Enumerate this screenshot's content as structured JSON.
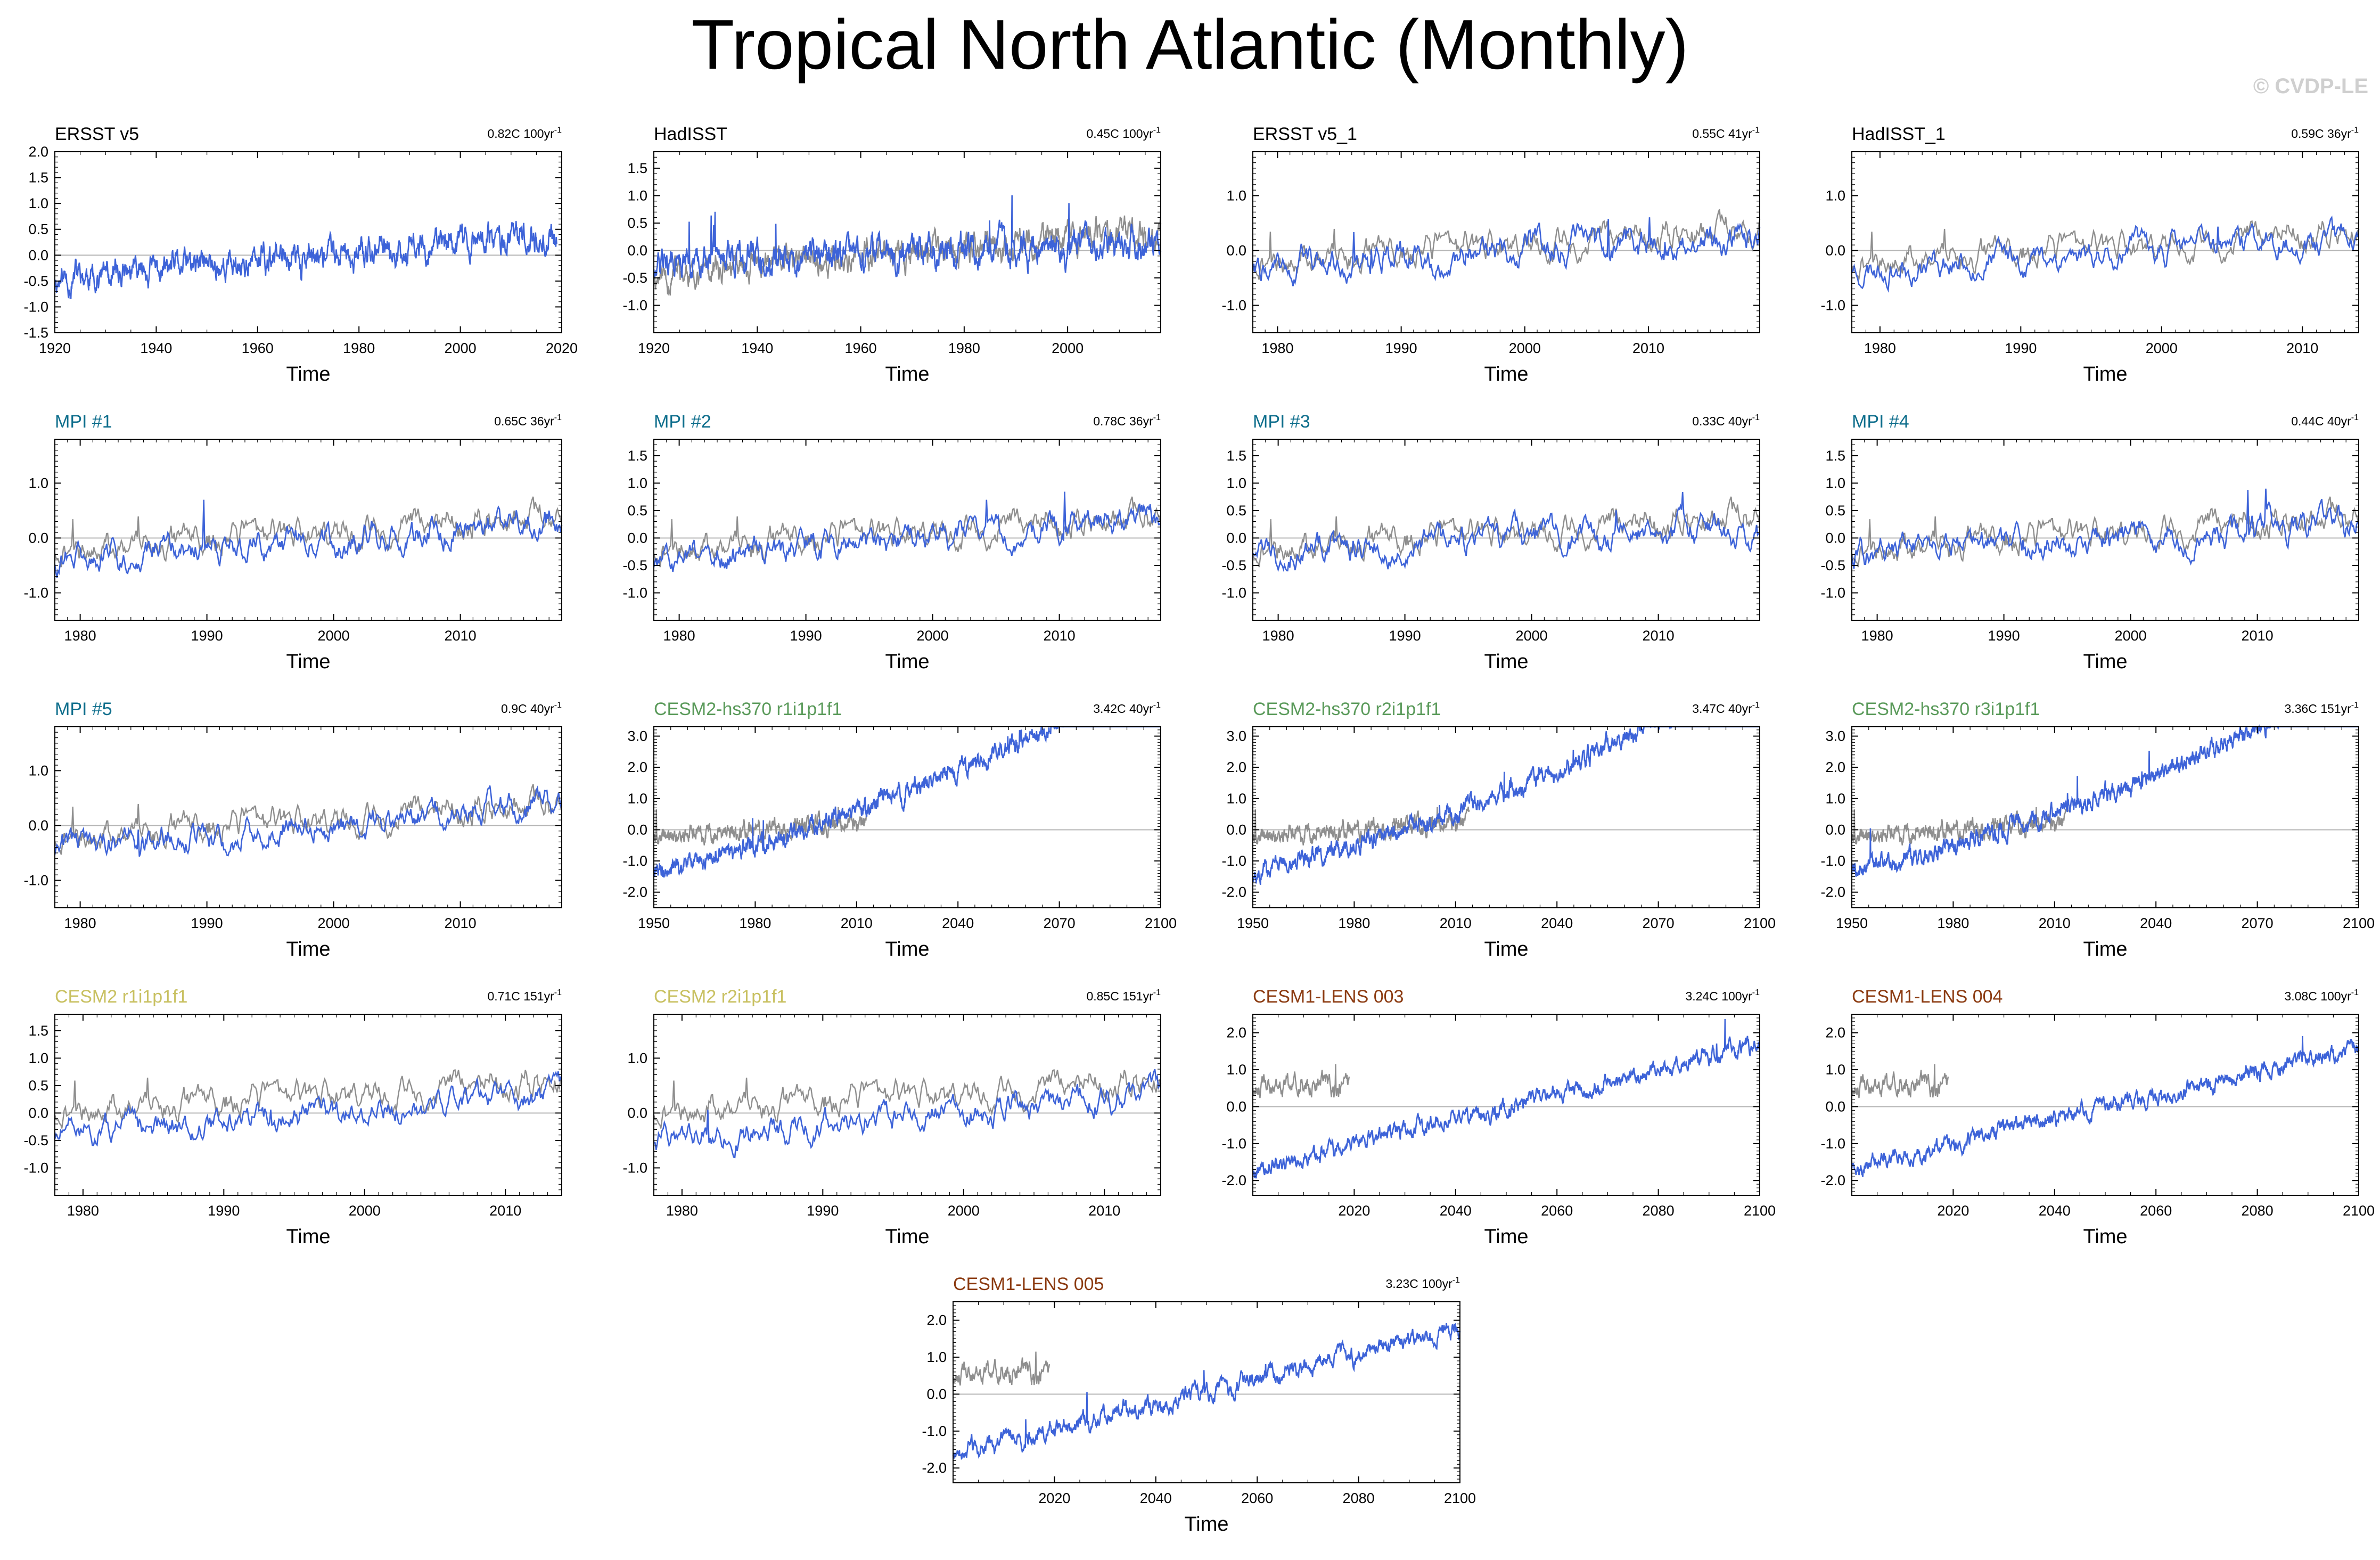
{
  "title": "Tropical North Atlantic (Monthly)",
  "watermark": "© CVDP-LE",
  "colors": {
    "model": "#3d63d8",
    "obs": "#8e8e8e",
    "axis": "#000000",
    "zero": "#b5b5b5"
  },
  "chart_data": [
    {
      "type": "line",
      "title": "ERSST v5",
      "title_color": "#000000",
      "trend": "0.82C 100yr",
      "trend_sup": "-1",
      "xlabel": "Time",
      "xlim": [
        1920,
        2020
      ],
      "xticks": [
        1920,
        1940,
        1960,
        1980,
        2000,
        2020
      ],
      "ylim": [
        -1.5,
        2.0
      ],
      "yticks": [
        -1.5,
        -1.0,
        -0.5,
        0.0,
        0.5,
        1.0,
        1.5,
        2.0
      ],
      "ytick_labels": [
        "-1.5",
        "-1.0",
        "-0.5",
        "0.0",
        "0.5",
        "1.0",
        "1.5",
        "2.0"
      ],
      "series": [
        {
          "name": "ERSST v5",
          "role": "model",
          "start": 1920,
          "end": 2019,
          "trend": 0.0082,
          "offset": -0.45,
          "amp": 0.32,
          "seed": 11
        }
      ]
    },
    {
      "type": "line",
      "title": "HadISST",
      "title_color": "#000000",
      "trend": "0.45C 100yr",
      "trend_sup": "-1",
      "xlabel": "Time",
      "xlim": [
        1920,
        2018
      ],
      "xticks": [
        1920,
        1940,
        1960,
        1980,
        2000
      ],
      "ylim": [
        -1.5,
        1.8
      ],
      "yticks": [
        -1.0,
        -0.5,
        0.0,
        0.5,
        1.0,
        1.5
      ],
      "ytick_labels": [
        "-1.0",
        "-0.5",
        "0.0",
        "0.5",
        "1.0",
        "1.5"
      ],
      "series": [
        {
          "name": "ERSST v5",
          "role": "obs",
          "start": 1920,
          "end": 2018,
          "trend": 0.0082,
          "offset": -0.45,
          "amp": 0.3,
          "seed": 11
        },
        {
          "name": "HadISST",
          "role": "model",
          "start": 1920,
          "end": 2018,
          "trend": 0.0045,
          "offset": -0.25,
          "amp": 0.32,
          "seed": 12
        }
      ]
    },
    {
      "type": "line",
      "title": "ERSST v5_1",
      "title_color": "#000000",
      "trend": "0.55C 41yr",
      "trend_sup": "-1",
      "xlabel": "Time",
      "xlim": [
        1978,
        2019
      ],
      "xticks": [
        1980,
        1990,
        2000,
        2010
      ],
      "ylim": [
        -1.5,
        1.8
      ],
      "yticks": [
        -1.0,
        0.0,
        1.0
      ],
      "ytick_labels": [
        "-1.0",
        "0.0",
        "1.0"
      ],
      "series": [
        {
          "name": "ERSST v5",
          "role": "obs",
          "start": 1978,
          "end": 2019,
          "trend": 0.015,
          "offset": -0.2,
          "amp": 0.3,
          "seed": 21
        },
        {
          "name": "ERSST v5_1",
          "role": "model",
          "start": 1978,
          "end": 2019,
          "trend": 0.0135,
          "offset": -0.3,
          "amp": 0.3,
          "seed": 22
        }
      ]
    },
    {
      "type": "line",
      "title": "HadISST_1",
      "title_color": "#000000",
      "trend": "0.59C 36yr",
      "trend_sup": "-1",
      "xlabel": "Time",
      "xlim": [
        1978,
        2014
      ],
      "xticks": [
        1980,
        1990,
        2000,
        2010
      ],
      "ylim": [
        -1.5,
        1.8
      ],
      "yticks": [
        -1.0,
        0.0,
        1.0
      ],
      "ytick_labels": [
        "-1.0",
        "0.0",
        "1.0"
      ],
      "series": [
        {
          "name": "ERSST v5",
          "role": "obs",
          "start": 1978,
          "end": 2014,
          "trend": 0.015,
          "offset": -0.2,
          "amp": 0.3,
          "seed": 21
        },
        {
          "name": "HadISST_1",
          "role": "model",
          "start": 1978,
          "end": 2014,
          "trend": 0.0165,
          "offset": -0.32,
          "amp": 0.3,
          "seed": 23
        }
      ]
    },
    {
      "type": "line",
      "title": "MPI #1",
      "title_color": "#0e6e8c",
      "trend": "0.65C 36yr",
      "trend_sup": "-1",
      "xlabel": "Time",
      "xlim": [
        1978,
        2018
      ],
      "xticks": [
        1980,
        1990,
        2000,
        2010
      ],
      "ylim": [
        -1.5,
        1.8
      ],
      "yticks": [
        -1.0,
        0.0,
        1.0
      ],
      "ytick_labels": [
        "-1.0",
        "0.0",
        "1.0"
      ],
      "series": [
        {
          "name": "ERSST v5",
          "role": "obs",
          "start": 1978,
          "end": 2018,
          "trend": 0.015,
          "offset": -0.2,
          "amp": 0.3,
          "seed": 21
        },
        {
          "name": "MPI #1",
          "role": "model",
          "start": 1978,
          "end": 2018,
          "trend": 0.018,
          "offset": -0.4,
          "amp": 0.3,
          "seed": 31
        }
      ]
    },
    {
      "type": "line",
      "title": "MPI #2",
      "title_color": "#0e6e8c",
      "trend": "0.78C 36yr",
      "trend_sup": "-1",
      "xlabel": "Time",
      "xlim": [
        1978,
        2018
      ],
      "xticks": [
        1980,
        1990,
        2000,
        2010
      ],
      "ylim": [
        -1.5,
        1.8
      ],
      "yticks": [
        -1.0,
        -0.5,
        0.0,
        0.5,
        1.0,
        1.5
      ],
      "ytick_labels": [
        "-1.0",
        "-0.5",
        "0.0",
        "0.5",
        "1.0",
        "1.5"
      ],
      "series": [
        {
          "name": "ERSST v5",
          "role": "obs",
          "start": 1978,
          "end": 2018,
          "trend": 0.015,
          "offset": -0.2,
          "amp": 0.3,
          "seed": 21
        },
        {
          "name": "MPI #2",
          "role": "model",
          "start": 1978,
          "end": 2018,
          "trend": 0.021,
          "offset": -0.45,
          "amp": 0.3,
          "seed": 32
        }
      ]
    },
    {
      "type": "line",
      "title": "MPI #3",
      "title_color": "#0e6e8c",
      "trend": "0.33C 40yr",
      "trend_sup": "-1",
      "xlabel": "Time",
      "xlim": [
        1978,
        2018
      ],
      "xticks": [
        1980,
        1990,
        2000,
        2010
      ],
      "ylim": [
        -1.5,
        1.8
      ],
      "yticks": [
        -1.0,
        -0.5,
        0.0,
        0.5,
        1.0,
        1.5
      ],
      "ytick_labels": [
        "-1.0",
        "-0.5",
        "0.0",
        "0.5",
        "1.0",
        "1.5"
      ],
      "series": [
        {
          "name": "ERSST v5",
          "role": "obs",
          "start": 1978,
          "end": 2018,
          "trend": 0.015,
          "offset": -0.2,
          "amp": 0.3,
          "seed": 21
        },
        {
          "name": "MPI #3",
          "role": "model",
          "start": 1978,
          "end": 2018,
          "trend": 0.008,
          "offset": -0.2,
          "amp": 0.3,
          "seed": 33
        }
      ]
    },
    {
      "type": "line",
      "title": "MPI #4",
      "title_color": "#0e6e8c",
      "trend": "0.44C 40yr",
      "trend_sup": "-1",
      "xlabel": "Time",
      "xlim": [
        1978,
        2018
      ],
      "xticks": [
        1980,
        1990,
        2000,
        2010
      ],
      "ylim": [
        -1.5,
        1.8
      ],
      "yticks": [
        -1.0,
        -0.5,
        0.0,
        0.5,
        1.0,
        1.5
      ],
      "ytick_labels": [
        "-1.0",
        "-0.5",
        "0.0",
        "0.5",
        "1.0",
        "1.5"
      ],
      "series": [
        {
          "name": "ERSST v5",
          "role": "obs",
          "start": 1978,
          "end": 2018,
          "trend": 0.015,
          "offset": -0.2,
          "amp": 0.3,
          "seed": 21
        },
        {
          "name": "MPI #4",
          "role": "model",
          "start": 1978,
          "end": 2018,
          "trend": 0.011,
          "offset": -0.25,
          "amp": 0.3,
          "seed": 34
        }
      ]
    },
    {
      "type": "line",
      "title": "MPI #5",
      "title_color": "#0e6e8c",
      "trend": "0.9C 40yr",
      "trend_sup": "-1",
      "xlabel": "Time",
      "xlim": [
        1978,
        2018
      ],
      "xticks": [
        1980,
        1990,
        2000,
        2010
      ],
      "ylim": [
        -1.5,
        1.8
      ],
      "yticks": [
        -1.0,
        0.0,
        1.0
      ],
      "ytick_labels": [
        "-1.0",
        "0.0",
        "1.0"
      ],
      "series": [
        {
          "name": "ERSST v5",
          "role": "obs",
          "start": 1978,
          "end": 2018,
          "trend": 0.015,
          "offset": -0.2,
          "amp": 0.3,
          "seed": 21
        },
        {
          "name": "MPI #5",
          "role": "model",
          "start": 1978,
          "end": 2018,
          "trend": 0.0225,
          "offset": -0.45,
          "amp": 0.3,
          "seed": 35
        }
      ]
    },
    {
      "type": "line",
      "title": "CESM2-hs370 r1i1p1f1",
      "title_color": "#5a9a5a",
      "trend": "3.42C 40yr",
      "trend_sup": "-1",
      "xlabel": "Time",
      "xlim": [
        1950,
        2100
      ],
      "xticks": [
        1950,
        1980,
        2010,
        2040,
        2070,
        2100
      ],
      "ylim": [
        -2.5,
        3.3
      ],
      "yticks": [
        -2.0,
        -1.0,
        0.0,
        1.0,
        2.0,
        3.0
      ],
      "ytick_labels": [
        "-2.0",
        "-1.0",
        "0.0",
        "1.0",
        "2.0",
        "3.0"
      ],
      "series": [
        {
          "name": "ERSST v5",
          "role": "obs",
          "start": 1950,
          "end": 2014,
          "trend": 0.008,
          "offset": -0.25,
          "amp": 0.3,
          "seed": 41
        },
        {
          "name": "CESM2-hs370 r1i1p1f1",
          "role": "model",
          "start": 1950,
          "end": 2100,
          "trend": 0.026,
          "offset": -1.4,
          "amp": 0.3,
          "seed": 42,
          "quad": 0.00012
        }
      ]
    },
    {
      "type": "line",
      "title": "CESM2-hs370 r2i1p1f1",
      "title_color": "#5a9a5a",
      "trend": "3.47C 40yr",
      "trend_sup": "-1",
      "xlabel": "Time",
      "xlim": [
        1950,
        2100
      ],
      "xticks": [
        1950,
        1980,
        2010,
        2040,
        2070,
        2100
      ],
      "ylim": [
        -2.5,
        3.3
      ],
      "yticks": [
        -2.0,
        -1.0,
        0.0,
        1.0,
        2.0,
        3.0
      ],
      "ytick_labels": [
        "-2.0",
        "-1.0",
        "0.0",
        "1.0",
        "2.0",
        "3.0"
      ],
      "series": [
        {
          "name": "ERSST v5",
          "role": "obs",
          "start": 1950,
          "end": 2014,
          "trend": 0.008,
          "offset": -0.25,
          "amp": 0.3,
          "seed": 41
        },
        {
          "name": "CESM2-hs370 r2i1p1f1",
          "role": "model",
          "start": 1950,
          "end": 2100,
          "trend": 0.026,
          "offset": -1.4,
          "amp": 0.3,
          "seed": 43,
          "quad": 0.00012
        }
      ]
    },
    {
      "type": "line",
      "title": "CESM2-hs370 r3i1p1f1",
      "title_color": "#5a9a5a",
      "trend": "3.36C 151yr",
      "trend_sup": "-1",
      "xlabel": "Time",
      "xlim": [
        1950,
        2100
      ],
      "xticks": [
        1950,
        1980,
        2010,
        2040,
        2070,
        2100
      ],
      "ylim": [
        -2.5,
        3.3
      ],
      "yticks": [
        -2.0,
        -1.0,
        0.0,
        1.0,
        2.0,
        3.0
      ],
      "ytick_labels": [
        "-2.0",
        "-1.0",
        "0.0",
        "1.0",
        "2.0",
        "3.0"
      ],
      "series": [
        {
          "name": "ERSST v5",
          "role": "obs",
          "start": 1950,
          "end": 2014,
          "trend": 0.008,
          "offset": -0.25,
          "amp": 0.3,
          "seed": 41
        },
        {
          "name": "CESM2-hs370 r3i1p1f1",
          "role": "model",
          "start": 1950,
          "end": 2100,
          "trend": 0.025,
          "offset": -1.35,
          "amp": 0.3,
          "seed": 44,
          "quad": 0.00011
        }
      ]
    },
    {
      "type": "line",
      "title": "CESM2 r1i1p1f1",
      "title_color": "#c8c060",
      "trend": "0.71C 151yr",
      "trend_sup": "-1",
      "xlabel": "Time",
      "xlim": [
        1978,
        2014
      ],
      "xticks": [
        1980,
        1990,
        2000,
        2010
      ],
      "ylim": [
        -1.5,
        1.8
      ],
      "yticks": [
        -1.0,
        -0.5,
        0.0,
        0.5,
        1.0,
        1.5
      ],
      "ytick_labels": [
        "-1.0",
        "-0.5",
        "0.0",
        "0.5",
        "1.0",
        "1.5"
      ],
      "series": [
        {
          "name": "ERSST v5",
          "role": "obs",
          "start": 1978,
          "end": 2014,
          "trend": 0.015,
          "offset": 0.05,
          "amp": 0.3,
          "seed": 21
        },
        {
          "name": "CESM2 r1i1p1f1",
          "role": "model",
          "start": 1978,
          "end": 2014,
          "trend": 0.02,
          "offset": -0.4,
          "amp": 0.28,
          "seed": 51
        }
      ]
    },
    {
      "type": "line",
      "title": "CESM2 r2i1p1f1",
      "title_color": "#c8c060",
      "trend": "0.85C 151yr",
      "trend_sup": "-1",
      "xlabel": "Time",
      "xlim": [
        1978,
        2014
      ],
      "xticks": [
        1980,
        1990,
        2000,
        2010
      ],
      "ylim": [
        -1.5,
        1.8
      ],
      "yticks": [
        -1.0,
        0.0,
        1.0
      ],
      "ytick_labels": [
        "-1.0",
        "0.0",
        "1.0"
      ],
      "series": [
        {
          "name": "ERSST v5",
          "role": "obs",
          "start": 1978,
          "end": 2014,
          "trend": 0.015,
          "offset": 0.05,
          "amp": 0.3,
          "seed": 21
        },
        {
          "name": "CESM2 r2i1p1f1",
          "role": "model",
          "start": 1978,
          "end": 2014,
          "trend": 0.022,
          "offset": -0.45,
          "amp": 0.3,
          "seed": 52
        }
      ]
    },
    {
      "type": "line",
      "title": "CESM1-LENS 003",
      "title_color": "#8b3a10",
      "trend": "3.24C 100yr",
      "trend_sup": "-1",
      "xlabel": "Time",
      "xlim": [
        2000,
        2100
      ],
      "xticks": [
        2020,
        2040,
        2060,
        2080,
        2100
      ],
      "ylim": [
        -2.4,
        2.5
      ],
      "yticks": [
        -2.0,
        -1.0,
        0.0,
        1.0,
        2.0
      ],
      "ytick_labels": [
        "-2.0",
        "-1.0",
        "0.0",
        "1.0",
        "2.0"
      ],
      "series": [
        {
          "name": "ERSST v5",
          "role": "obs",
          "start": 2000,
          "end": 2019,
          "trend": 0.0,
          "offset": 0.5,
          "amp": 0.32,
          "seed": 61
        },
        {
          "name": "CESM1-LENS 003",
          "role": "model",
          "start": 2000,
          "end": 2100,
          "trend": 0.034,
          "offset": -1.7,
          "amp": 0.25,
          "seed": 62
        }
      ]
    },
    {
      "type": "line",
      "title": "CESM1-LENS 004",
      "title_color": "#8b3a10",
      "trend": "3.08C 100yr",
      "trend_sup": "-1",
      "xlabel": "Time",
      "xlim": [
        2000,
        2100
      ],
      "xticks": [
        2020,
        2040,
        2060,
        2080,
        2100
      ],
      "ylim": [
        -2.4,
        2.5
      ],
      "yticks": [
        -2.0,
        -1.0,
        0.0,
        1.0,
        2.0
      ],
      "ytick_labels": [
        "-2.0",
        "-1.0",
        "0.0",
        "1.0",
        "2.0"
      ],
      "series": [
        {
          "name": "ERSST v5",
          "role": "obs",
          "start": 2000,
          "end": 2019,
          "trend": 0.0,
          "offset": 0.5,
          "amp": 0.32,
          "seed": 61
        },
        {
          "name": "CESM1-LENS 004",
          "role": "model",
          "start": 2000,
          "end": 2100,
          "trend": 0.032,
          "offset": -1.6,
          "amp": 0.25,
          "seed": 63
        }
      ]
    },
    {
      "type": "line",
      "title": "CESM1-LENS 005",
      "title_color": "#8b3a10",
      "trend": "3.23C 100yr",
      "trend_sup": "-1",
      "xlabel": "Time",
      "xlim": [
        2000,
        2100
      ],
      "xticks": [
        2020,
        2040,
        2060,
        2080,
        2100
      ],
      "ylim": [
        -2.4,
        2.5
      ],
      "yticks": [
        -2.0,
        -1.0,
        0.0,
        1.0,
        2.0
      ],
      "ytick_labels": [
        "-2.0",
        "-1.0",
        "0.0",
        "1.0",
        "2.0"
      ],
      "series": [
        {
          "name": "ERSST v5",
          "role": "obs",
          "start": 2000,
          "end": 2019,
          "trend": 0.0,
          "offset": 0.5,
          "amp": 0.32,
          "seed": 61
        },
        {
          "name": "CESM1-LENS 005",
          "role": "model",
          "start": 2000,
          "end": 2100,
          "trend": 0.034,
          "offset": -1.6,
          "amp": 0.27,
          "seed": 64
        }
      ]
    }
  ]
}
